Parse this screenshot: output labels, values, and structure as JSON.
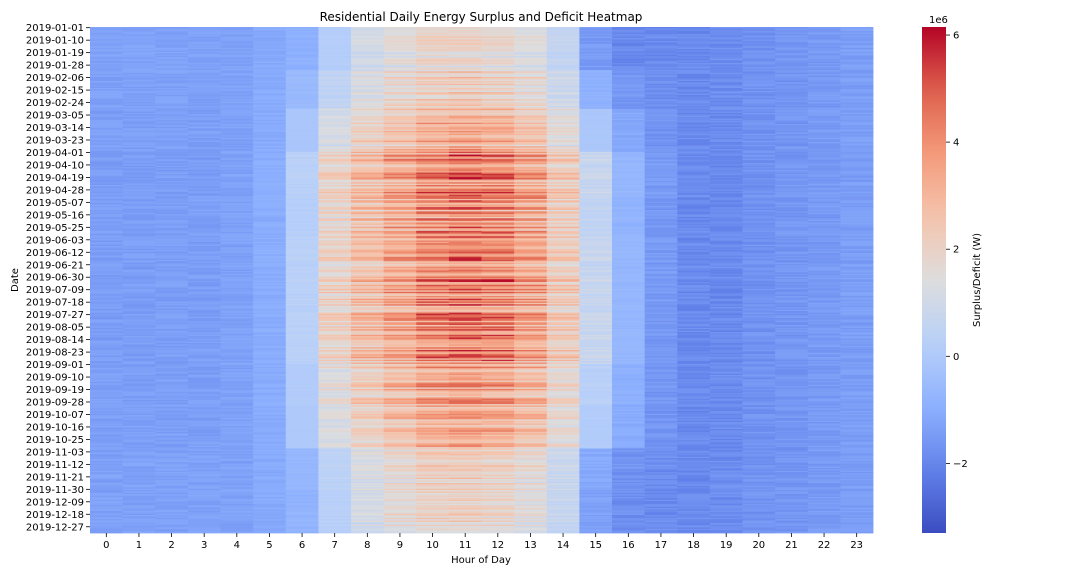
{
  "chart_data": {
    "type": "heatmap",
    "title": "Residential Daily Energy Surplus and Deficit Heatmap",
    "xlabel": "Hour of Day",
    "ylabel": "Date",
    "colorbar_label": "Surplus/Deficit (W)",
    "colorbar_scale_label": "1e6",
    "colormap": "coolwarm",
    "value_multiplier": 1000000,
    "vmin": -3.3,
    "vmax": 6.15,
    "colorbar_ticks": [
      6,
      4,
      2,
      0,
      -2
    ],
    "colorbar_tick_labels": [
      "6",
      "4",
      "2",
      "0",
      "−2"
    ],
    "x_tick_labels": [
      "0",
      "1",
      "2",
      "3",
      "4",
      "5",
      "6",
      "7",
      "8",
      "9",
      "10",
      "11",
      "12",
      "13",
      "14",
      "15",
      "16",
      "17",
      "18",
      "19",
      "20",
      "21",
      "22",
      "23"
    ],
    "y_tick_labels": [
      "2019-01-01",
      "2019-01-10",
      "2019-01-19",
      "2019-01-28",
      "2019-02-06",
      "2019-02-15",
      "2019-02-24",
      "2019-03-05",
      "2019-03-14",
      "2019-03-23",
      "2019-04-01",
      "2019-04-10",
      "2019-04-19",
      "2019-04-28",
      "2019-05-07",
      "2019-05-16",
      "2019-05-25",
      "2019-06-03",
      "2019-06-12",
      "2019-06-21",
      "2019-06-30",
      "2019-07-09",
      "2019-07-18",
      "2019-07-27",
      "2019-08-05",
      "2019-08-14",
      "2019-08-23",
      "2019-09-01",
      "2019-09-10",
      "2019-09-19",
      "2019-09-28",
      "2019-10-07",
      "2019-10-16",
      "2019-10-25",
      "2019-11-03",
      "2019-11-12",
      "2019-11-21",
      "2019-11-30",
      "2019-12-09",
      "2019-12-18",
      "2019-12-27"
    ],
    "rows": 365,
    "rows_per_tick": 9,
    "hourly_profile_typical": [
      -1.4,
      -1.4,
      -1.4,
      -1.4,
      -1.3,
      -1.0,
      0.3,
      1.9,
      2.6,
      3.2,
      3.8,
      4.1,
      3.9,
      3.3,
      2.2,
      0.7,
      -0.7,
      -1.5,
      -1.9,
      -1.9,
      -1.7,
      -1.6,
      -1.5,
      -1.4
    ],
    "monthly_amplitude": [
      0.55,
      0.7,
      0.9,
      1.1,
      1.05,
      1.15,
      1.1,
      1.1,
      1.0,
      0.95,
      0.65,
      0.6
    ],
    "hourly_profile_winter": [
      -1.3,
      -1.3,
      -1.3,
      -1.3,
      -1.3,
      -1.1,
      -0.9,
      0.2,
      1.4,
      2.0,
      2.5,
      2.5,
      2.3,
      1.8,
      0.8,
      -1.5,
      -1.9,
      -1.9,
      -1.9,
      -1.8,
      -1.7,
      -1.6,
      -1.5,
      -1.4
    ]
  }
}
